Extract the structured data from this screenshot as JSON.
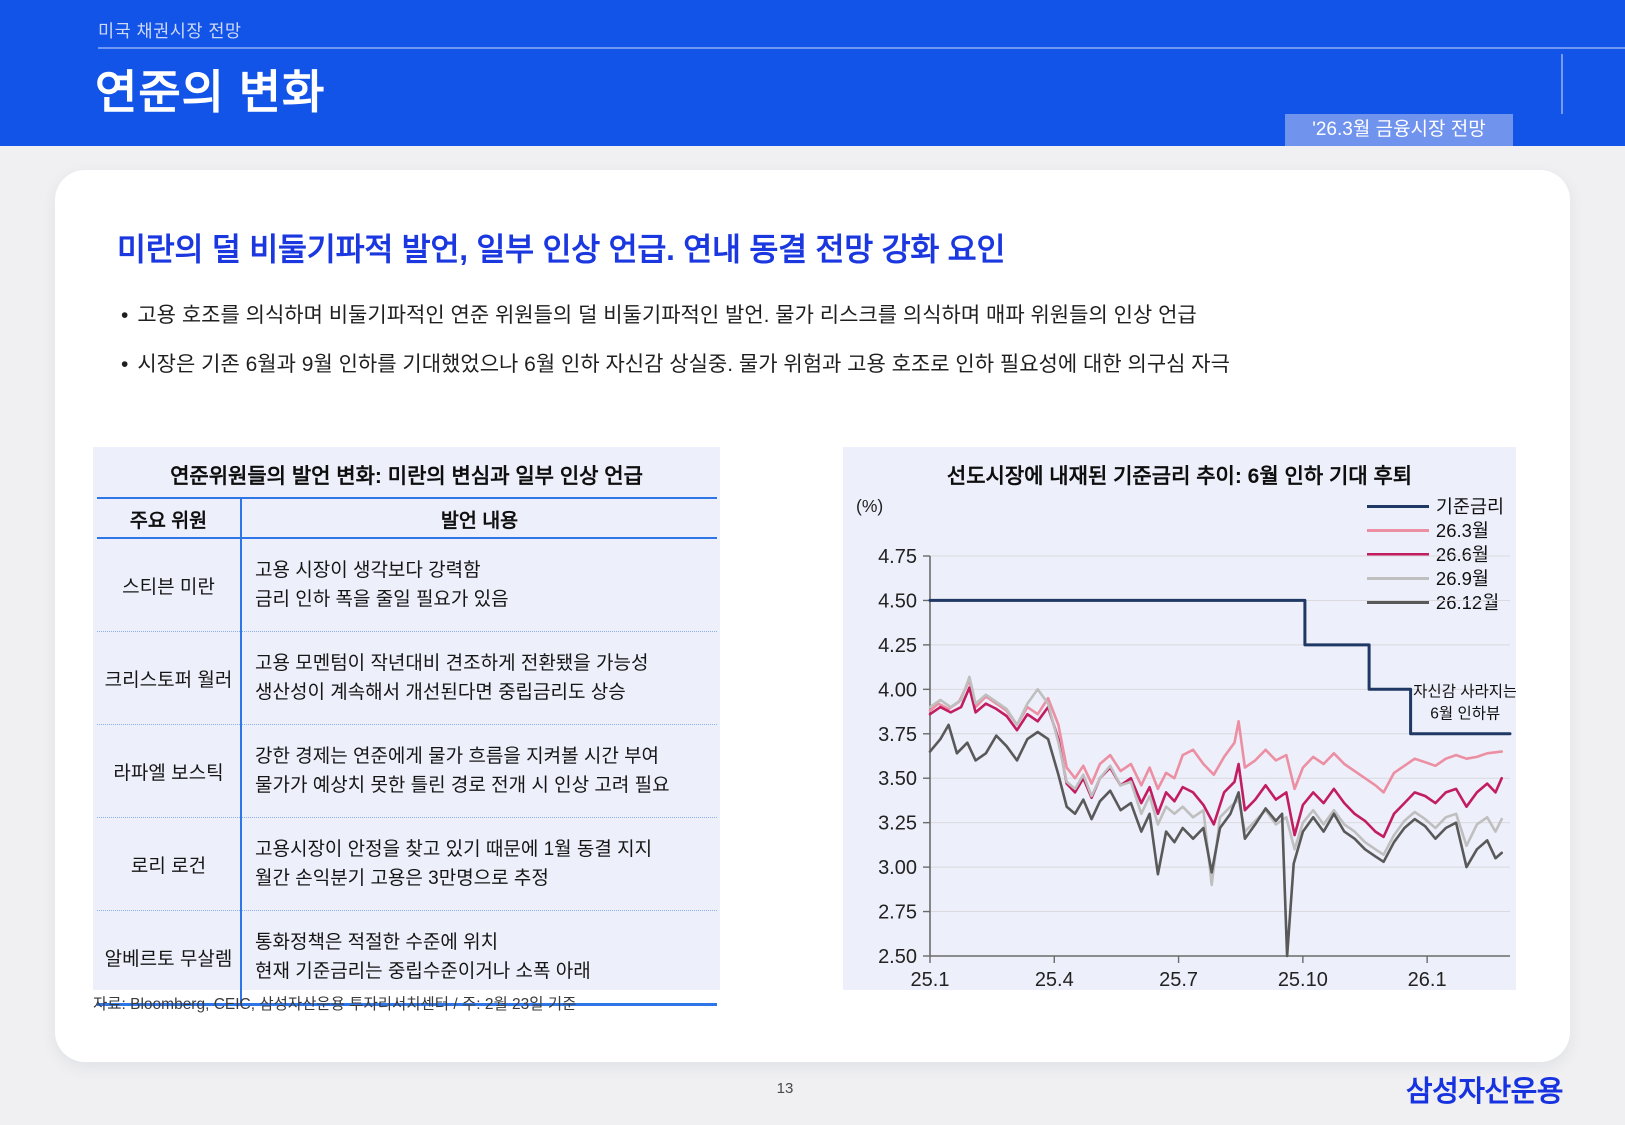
{
  "header": {
    "eyebrow": "미국 채권시장 전망",
    "title": "연준의 변화",
    "badge": "'26.3월 금융시장 전망"
  },
  "lead": {
    "heading": "미란의 덜 비둘기파적 발언, 일부 인상 언급. 연내 동결 전망 강화 요인",
    "bullets": [
      "고용 호조를 의식하며 비둘기파적인 연준 위원들의 덜 비둘기파적인 발언. 물가 리스크를 의식하며 매파 위원들의 인상 언급",
      "시장은 기존 6월과 9월 인하를 기대했었으나 6월 인하 자신감 상실중. 물가 위험과 고용 호조로 인하 필요성에 대한 의구심 자극"
    ]
  },
  "table_panel": {
    "title": "연준위원들의 발언 변화: 미란의 변심과 일부 인상 언급",
    "col_headers": [
      "주요 위원",
      "발언 내용"
    ],
    "rows": [
      {
        "name": "스티븐 미란",
        "line1": "고용 시장이 생각보다 강력함",
        "line2": "금리 인하 폭을 줄일 필요가 있음"
      },
      {
        "name": "크리스토퍼 월러",
        "line1": "고용 모멘텀이 작년대비 견조하게 전환됐을 가능성",
        "line2": "생산성이 계속해서 개선된다면 중립금리도 상승"
      },
      {
        "name": "라파엘 보스틱",
        "line1": "강한 경제는 연준에게 물가 흐름을 지켜볼 시간 부여",
        "line2": "물가가 예상치 못한 틀린 경로 전개 시 인상 고려 필요"
      },
      {
        "name": "로리 로건",
        "line1": "고용시장이 안정을 찾고 있기 때문에 1월 동결 지지",
        "line2": "월간 손익분기 고용은 3만명으로 추정"
      },
      {
        "name": "알베르토 무살렘",
        "line1": "통화정책은 적절한 수준에 위치",
        "line2": "현재 기준금리는 중립수준이거나 소폭 아래"
      }
    ]
  },
  "source_note": "자료: Bloomberg, CEIC, 삼성자산운용 투자리서치센터 / 주: 2월 23일 기준",
  "chart_data": {
    "type": "line",
    "title": "선도시장에 내재된 기준금리 추이: 6월 인하 기대 후퇴",
    "unit_label": "(%)",
    "xlabel": "",
    "ylabel": "%",
    "ylim": [
      2.5,
      4.75
    ],
    "y_step": 0.25,
    "xlim": [
      0,
      14
    ],
    "x_unit": "months since 2025-01",
    "x_ticks": [
      {
        "t": 0,
        "label": "25.1"
      },
      {
        "t": 3,
        "label": "25.4"
      },
      {
        "t": 6,
        "label": "25.7"
      },
      {
        "t": 9,
        "label": "25.10"
      },
      {
        "t": 12,
        "label": "26.1"
      }
    ],
    "grid": true,
    "legend_position": "top-right",
    "annotation": {
      "lines": [
        "자신감 사라지는",
        "6월 인하뷰"
      ],
      "t": 12.92,
      "value": 3.96
    },
    "series": [
      {
        "name": "기준금리",
        "color": "#1f3864",
        "width": 3,
        "points": [
          [
            0,
            4.5
          ],
          [
            9.05,
            4.5
          ],
          [
            9.05,
            4.25
          ],
          [
            10.6,
            4.25
          ],
          [
            10.6,
            4.0
          ],
          [
            11.6,
            4.0
          ],
          [
            11.6,
            3.75
          ],
          [
            14,
            3.75
          ]
        ]
      },
      {
        "name": "26.3월",
        "color": "#ec8fa3",
        "width": 2.6,
        "points": [
          [
            0,
            3.88
          ],
          [
            0.2,
            3.92
          ],
          [
            0.45,
            3.89
          ],
          [
            0.7,
            3.93
          ],
          [
            0.95,
            4.05
          ],
          [
            1.1,
            3.9
          ],
          [
            1.35,
            3.96
          ],
          [
            1.6,
            3.92
          ],
          [
            1.85,
            3.88
          ],
          [
            2.1,
            3.8
          ],
          [
            2.35,
            3.9
          ],
          [
            2.6,
            3.86
          ],
          [
            2.85,
            3.95
          ],
          [
            3.1,
            3.8
          ],
          [
            3.3,
            3.56
          ],
          [
            3.5,
            3.5
          ],
          [
            3.7,
            3.57
          ],
          [
            3.9,
            3.47
          ],
          [
            4.1,
            3.58
          ],
          [
            4.35,
            3.63
          ],
          [
            4.6,
            3.54
          ],
          [
            4.85,
            3.58
          ],
          [
            5.1,
            3.46
          ],
          [
            5.3,
            3.56
          ],
          [
            5.5,
            3.44
          ],
          [
            5.7,
            3.53
          ],
          [
            5.9,
            3.5
          ],
          [
            6.1,
            3.63
          ],
          [
            6.35,
            3.66
          ],
          [
            6.6,
            3.58
          ],
          [
            6.85,
            3.52
          ],
          [
            7.1,
            3.62
          ],
          [
            7.35,
            3.7
          ],
          [
            7.45,
            3.82
          ],
          [
            7.6,
            3.56
          ],
          [
            7.85,
            3.6
          ],
          [
            8.1,
            3.66
          ],
          [
            8.35,
            3.6
          ],
          [
            8.6,
            3.63
          ],
          [
            8.8,
            3.44
          ],
          [
            9,
            3.56
          ],
          [
            9.25,
            3.62
          ],
          [
            9.5,
            3.58
          ],
          [
            9.75,
            3.64
          ],
          [
            10,
            3.58
          ],
          [
            10.25,
            3.54
          ],
          [
            10.5,
            3.5
          ],
          [
            10.75,
            3.46
          ],
          [
            10.95,
            3.42
          ],
          [
            11.2,
            3.53
          ],
          [
            11.45,
            3.57
          ],
          [
            11.7,
            3.61
          ],
          [
            11.95,
            3.59
          ],
          [
            12.2,
            3.57
          ],
          [
            12.45,
            3.61
          ],
          [
            12.7,
            3.63
          ],
          [
            12.95,
            3.61
          ],
          [
            13.2,
            3.62
          ],
          [
            13.45,
            3.64
          ],
          [
            13.8,
            3.65
          ]
        ]
      },
      {
        "name": "26.6월",
        "color": "#c21d60",
        "width": 2.6,
        "points": [
          [
            0,
            3.86
          ],
          [
            0.25,
            3.9
          ],
          [
            0.5,
            3.87
          ],
          [
            0.75,
            3.9
          ],
          [
            0.95,
            4.01
          ],
          [
            1.1,
            3.87
          ],
          [
            1.35,
            3.92
          ],
          [
            1.6,
            3.89
          ],
          [
            1.85,
            3.85
          ],
          [
            2.1,
            3.77
          ],
          [
            2.35,
            3.86
          ],
          [
            2.6,
            3.82
          ],
          [
            2.85,
            3.9
          ],
          [
            3.1,
            3.72
          ],
          [
            3.3,
            3.47
          ],
          [
            3.5,
            3.42
          ],
          [
            3.7,
            3.5
          ],
          [
            3.9,
            3.39
          ],
          [
            4.1,
            3.5
          ],
          [
            4.35,
            3.56
          ],
          [
            4.6,
            3.46
          ],
          [
            4.85,
            3.5
          ],
          [
            5.1,
            3.36
          ],
          [
            5.3,
            3.45
          ],
          [
            5.5,
            3.3
          ],
          [
            5.7,
            3.42
          ],
          [
            5.9,
            3.37
          ],
          [
            6.1,
            3.45
          ],
          [
            6.35,
            3.42
          ],
          [
            6.6,
            3.35
          ],
          [
            6.85,
            3.24
          ],
          [
            7.1,
            3.42
          ],
          [
            7.35,
            3.48
          ],
          [
            7.45,
            3.58
          ],
          [
            7.6,
            3.32
          ],
          [
            7.85,
            3.38
          ],
          [
            8.1,
            3.46
          ],
          [
            8.35,
            3.38
          ],
          [
            8.6,
            3.42
          ],
          [
            8.8,
            3.18
          ],
          [
            9,
            3.35
          ],
          [
            9.25,
            3.42
          ],
          [
            9.5,
            3.36
          ],
          [
            9.75,
            3.44
          ],
          [
            10,
            3.36
          ],
          [
            10.25,
            3.3
          ],
          [
            10.5,
            3.26
          ],
          [
            10.75,
            3.2
          ],
          [
            10.95,
            3.17
          ],
          [
            11.2,
            3.3
          ],
          [
            11.45,
            3.36
          ],
          [
            11.7,
            3.42
          ],
          [
            11.95,
            3.4
          ],
          [
            12.2,
            3.36
          ],
          [
            12.45,
            3.42
          ],
          [
            12.7,
            3.44
          ],
          [
            12.95,
            3.34
          ],
          [
            13.2,
            3.42
          ],
          [
            13.45,
            3.47
          ],
          [
            13.65,
            3.42
          ],
          [
            13.8,
            3.5
          ]
        ]
      },
      {
        "name": "26.9월",
        "color": "#bfbfbf",
        "width": 2.6,
        "points": [
          [
            0,
            3.9
          ],
          [
            0.25,
            3.94
          ],
          [
            0.5,
            3.9
          ],
          [
            0.75,
            3.94
          ],
          [
            0.95,
            4.07
          ],
          [
            1.1,
            3.92
          ],
          [
            1.35,
            3.97
          ],
          [
            1.6,
            3.93
          ],
          [
            1.85,
            3.89
          ],
          [
            2.1,
            3.8
          ],
          [
            2.35,
            3.92
          ],
          [
            2.6,
            4.0
          ],
          [
            2.85,
            3.92
          ],
          [
            3.1,
            3.7
          ],
          [
            3.3,
            3.48
          ],
          [
            3.5,
            3.44
          ],
          [
            3.7,
            3.52
          ],
          [
            3.9,
            3.4
          ],
          [
            4.1,
            3.5
          ],
          [
            4.35,
            3.57
          ],
          [
            4.6,
            3.46
          ],
          [
            4.85,
            3.48
          ],
          [
            5.1,
            3.3
          ],
          [
            5.3,
            3.4
          ],
          [
            5.5,
            3.24
          ],
          [
            5.7,
            3.34
          ],
          [
            5.9,
            3.3
          ],
          [
            6.1,
            3.34
          ],
          [
            6.35,
            3.28
          ],
          [
            6.6,
            3.32
          ],
          [
            6.8,
            2.9
          ],
          [
            7,
            3.28
          ],
          [
            7.25,
            3.34
          ],
          [
            7.45,
            3.38
          ],
          [
            7.6,
            3.2
          ],
          [
            7.85,
            3.26
          ],
          [
            8.1,
            3.32
          ],
          [
            8.35,
            3.24
          ],
          [
            8.6,
            3.28
          ],
          [
            8.8,
            3.1
          ],
          [
            9,
            3.25
          ],
          [
            9.25,
            3.32
          ],
          [
            9.5,
            3.24
          ],
          [
            9.75,
            3.32
          ],
          [
            10,
            3.24
          ],
          [
            10.25,
            3.2
          ],
          [
            10.5,
            3.14
          ],
          [
            10.75,
            3.1
          ],
          [
            10.95,
            3.07
          ],
          [
            11.2,
            3.18
          ],
          [
            11.45,
            3.26
          ],
          [
            11.7,
            3.31
          ],
          [
            11.95,
            3.27
          ],
          [
            12.2,
            3.22
          ],
          [
            12.45,
            3.28
          ],
          [
            12.7,
            3.3
          ],
          [
            12.95,
            3.12
          ],
          [
            13.2,
            3.24
          ],
          [
            13.45,
            3.28
          ],
          [
            13.65,
            3.2
          ],
          [
            13.8,
            3.27
          ]
        ]
      },
      {
        "name": "26.12월",
        "color": "#595959",
        "width": 2.6,
        "points": [
          [
            0,
            3.65
          ],
          [
            0.25,
            3.72
          ],
          [
            0.45,
            3.8
          ],
          [
            0.65,
            3.64
          ],
          [
            0.9,
            3.7
          ],
          [
            1.1,
            3.6
          ],
          [
            1.35,
            3.64
          ],
          [
            1.6,
            3.74
          ],
          [
            1.85,
            3.68
          ],
          [
            2.1,
            3.6
          ],
          [
            2.35,
            3.72
          ],
          [
            2.6,
            3.76
          ],
          [
            2.85,
            3.72
          ],
          [
            3.1,
            3.52
          ],
          [
            3.3,
            3.34
          ],
          [
            3.5,
            3.3
          ],
          [
            3.7,
            3.38
          ],
          [
            3.9,
            3.27
          ],
          [
            4.1,
            3.37
          ],
          [
            4.35,
            3.43
          ],
          [
            4.6,
            3.32
          ],
          [
            4.85,
            3.36
          ],
          [
            5.1,
            3.2
          ],
          [
            5.3,
            3.3
          ],
          [
            5.5,
            2.96
          ],
          [
            5.7,
            3.2
          ],
          [
            5.9,
            3.14
          ],
          [
            6.1,
            3.22
          ],
          [
            6.35,
            3.16
          ],
          [
            6.6,
            3.22
          ],
          [
            6.8,
            2.97
          ],
          [
            7,
            3.22
          ],
          [
            7.25,
            3.3
          ],
          [
            7.45,
            3.42
          ],
          [
            7.6,
            3.16
          ],
          [
            7.85,
            3.24
          ],
          [
            8.1,
            3.33
          ],
          [
            8.35,
            3.26
          ],
          [
            8.5,
            3.3
          ],
          [
            8.62,
            2.5
          ],
          [
            8.78,
            3.02
          ],
          [
            9,
            3.2
          ],
          [
            9.25,
            3.28
          ],
          [
            9.5,
            3.2
          ],
          [
            9.75,
            3.3
          ],
          [
            10,
            3.2
          ],
          [
            10.25,
            3.16
          ],
          [
            10.5,
            3.1
          ],
          [
            10.75,
            3.06
          ],
          [
            10.95,
            3.03
          ],
          [
            11.2,
            3.14
          ],
          [
            11.45,
            3.22
          ],
          [
            11.7,
            3.27
          ],
          [
            11.95,
            3.23
          ],
          [
            12.2,
            3.16
          ],
          [
            12.45,
            3.22
          ],
          [
            12.7,
            3.25
          ],
          [
            12.95,
            3.0
          ],
          [
            13.2,
            3.1
          ],
          [
            13.45,
            3.15
          ],
          [
            13.65,
            3.05
          ],
          [
            13.8,
            3.08
          ]
        ]
      }
    ]
  },
  "footer": {
    "page_number": "13",
    "logo": "삼성자산운용"
  }
}
